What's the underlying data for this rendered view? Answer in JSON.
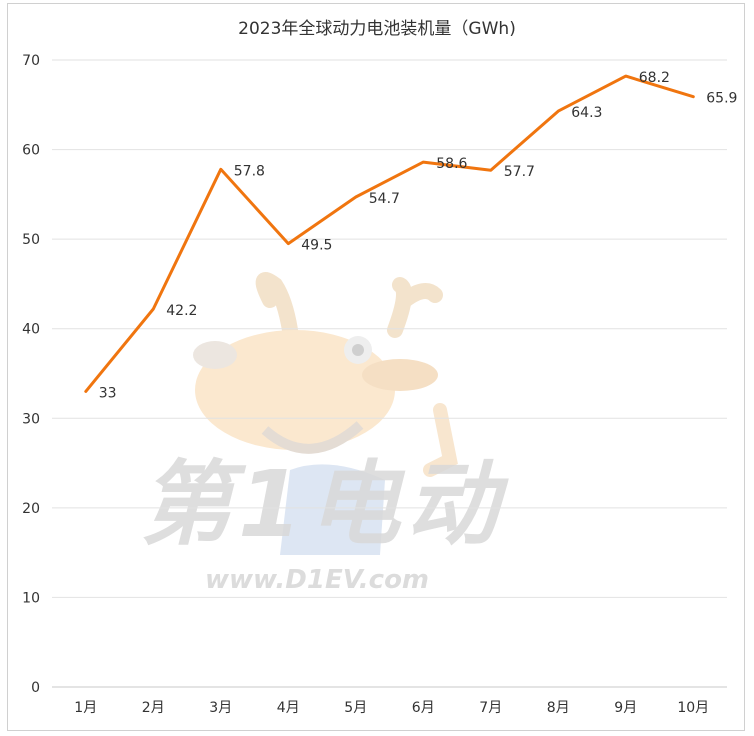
{
  "chart_data": {
    "type": "line",
    "title": "2023年全球动力电池装机量（GWh)",
    "categories": [
      "1月",
      "2月",
      "3月",
      "4月",
      "5月",
      "6月",
      "7月",
      "8月",
      "9月",
      "10月"
    ],
    "series": [
      {
        "values": [
          33,
          42.2,
          57.8,
          49.5,
          54.7,
          58.6,
          57.7,
          64.3,
          68.2,
          65.9
        ]
      }
    ],
    "data_labels": [
      "33",
      "42.2",
      "57.8",
      "49.5",
      "54.7",
      "58.6",
      "57.7",
      "64.3",
      "68.2",
      "65.9"
    ],
    "ylim": [
      0,
      70
    ],
    "yticks": [
      "0",
      "10",
      "20",
      "30",
      "40",
      "50",
      "60",
      "70"
    ],
    "grid": true,
    "line_color": "#F0750F"
  },
  "watermark": {
    "brand_text": "第1电动",
    "url_text": "www.D1EV.com"
  }
}
